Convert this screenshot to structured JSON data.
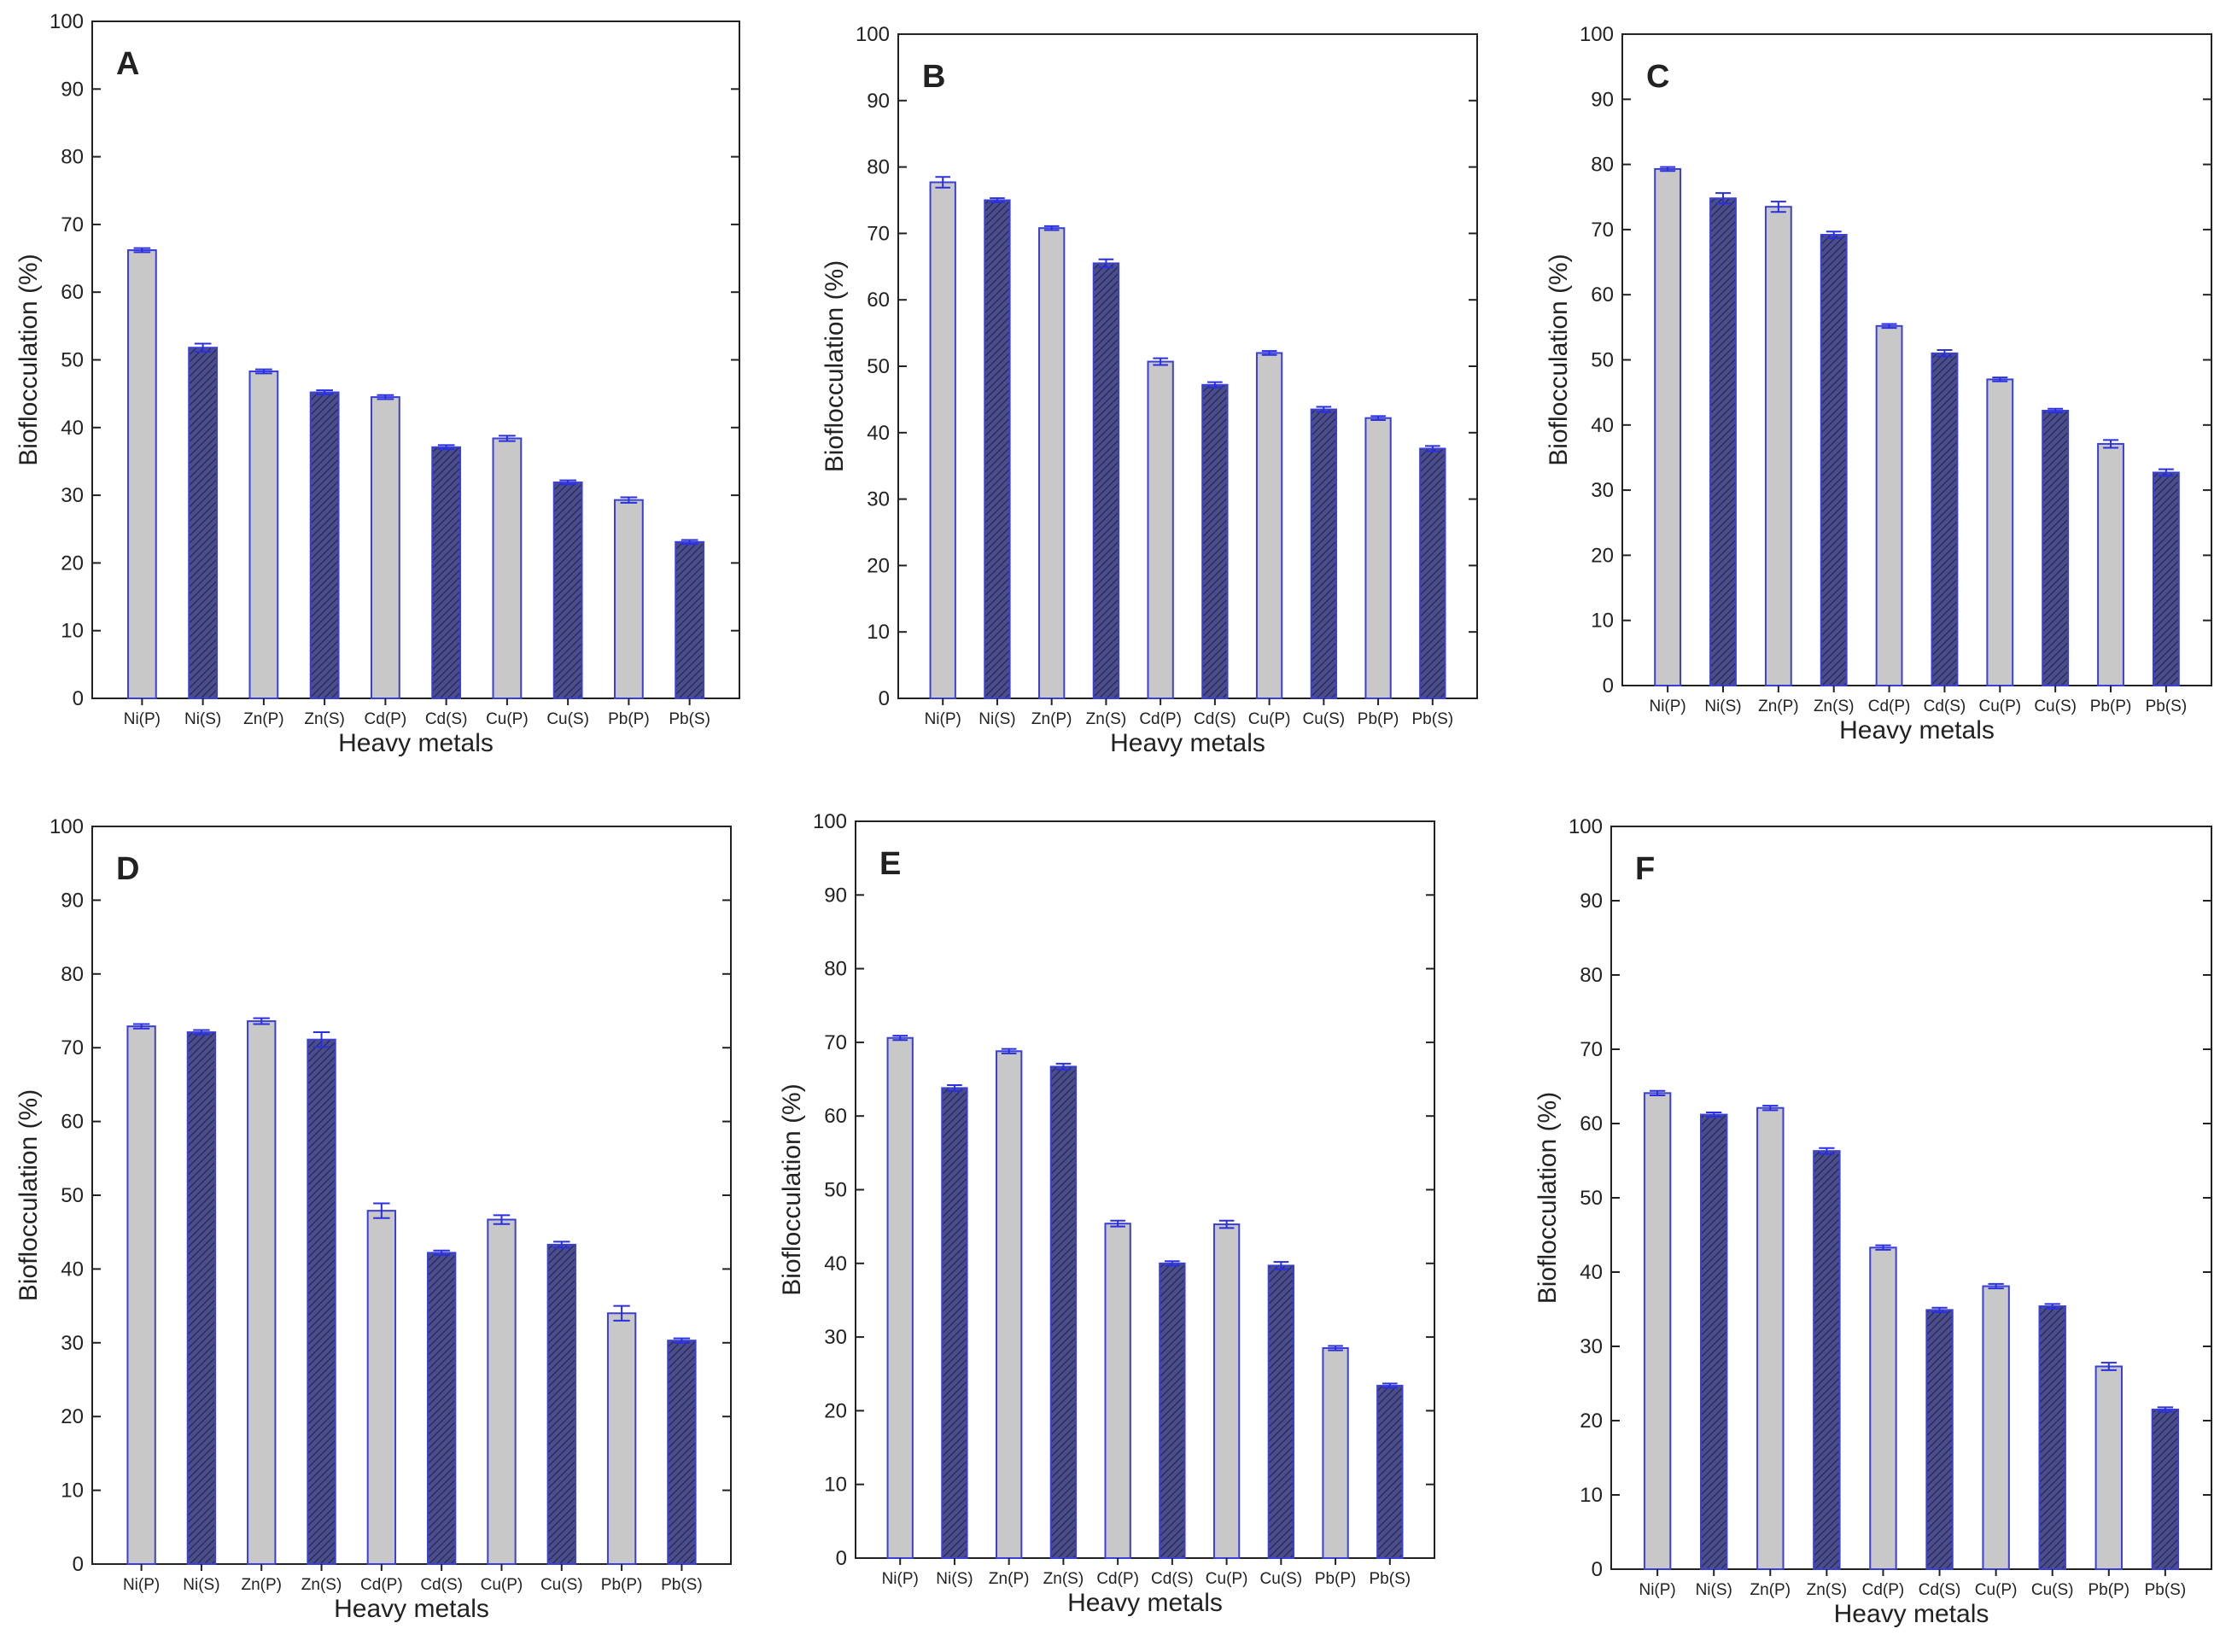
{
  "figure": {
    "colors": {
      "bar_outline": "#3a3fd8",
      "p_fill": "#c8c8c8",
      "s_fill": "#4b4e8a",
      "s_hatch": "#2b2d5e",
      "axis": "#222222",
      "error_bar": "#2a2fe0"
    },
    "chart_data": [
      {
        "type": "bar",
        "panel": "A",
        "title": "",
        "xlabel": "Heavy metals",
        "ylabel": "Bioflocculation (%)",
        "ylim": [
          0,
          100
        ],
        "yticks": [
          0,
          10,
          20,
          30,
          40,
          50,
          60,
          70,
          80,
          90,
          100
        ],
        "categories": [
          "Ni(P)",
          "Ni(S)",
          "Zn(P)",
          "Zn(S)",
          "Cd(P)",
          "Cd(S)",
          "Cu(P)",
          "Cu(S)",
          "Pb(P)",
          "Pb(S)"
        ],
        "values": [
          66.2,
          51.8,
          48.3,
          45.2,
          44.5,
          37.1,
          38.4,
          31.9,
          29.3,
          23.1
        ],
        "errors": [
          0.3,
          0.6,
          0.3,
          0.3,
          0.3,
          0.3,
          0.4,
          0.3,
          0.4,
          0.3
        ]
      },
      {
        "type": "bar",
        "panel": "B",
        "title": "",
        "xlabel": "Heavy metals",
        "ylabel": "Bioflocculation (%)",
        "ylim": [
          0,
          100
        ],
        "yticks": [
          0,
          10,
          20,
          30,
          40,
          50,
          60,
          70,
          80,
          90,
          100
        ],
        "categories": [
          "Ni(P)",
          "Ni(S)",
          "Zn(P)",
          "Zn(S)",
          "Cd(P)",
          "Cd(S)",
          "Cu(P)",
          "Cu(S)",
          "Pb(P)",
          "Pb(S)"
        ],
        "values": [
          77.7,
          75.0,
          70.8,
          65.5,
          50.7,
          47.2,
          52.0,
          43.5,
          42.2,
          37.6
        ],
        "errors": [
          0.8,
          0.3,
          0.3,
          0.6,
          0.5,
          0.4,
          0.3,
          0.4,
          0.3,
          0.4
        ]
      },
      {
        "type": "bar",
        "panel": "C",
        "title": "",
        "xlabel": "Heavy metals",
        "ylabel": "Bioflocculation (%)",
        "ylim": [
          0,
          100
        ],
        "yticks": [
          0,
          10,
          20,
          30,
          40,
          50,
          60,
          70,
          80,
          90,
          100
        ],
        "categories": [
          "Ni(P)",
          "Ni(S)",
          "Zn(P)",
          "Zn(S)",
          "Cd(P)",
          "Cd(S)",
          "Cu(P)",
          "Cu(S)",
          "Pb(P)",
          "Pb(S)"
        ],
        "values": [
          79.3,
          74.8,
          73.5,
          69.2,
          55.2,
          51.0,
          47.0,
          42.2,
          37.1,
          32.7
        ],
        "errors": [
          0.3,
          0.8,
          0.8,
          0.5,
          0.3,
          0.5,
          0.3,
          0.3,
          0.6,
          0.5
        ]
      },
      {
        "type": "bar",
        "panel": "D",
        "title": "",
        "xlabel": "Heavy metals",
        "ylabel": "Bioflocculation (%)",
        "ylim": [
          0,
          100
        ],
        "yticks": [
          0,
          10,
          20,
          30,
          40,
          50,
          60,
          70,
          80,
          90,
          100
        ],
        "categories": [
          "Ni(P)",
          "Ni(S)",
          "Zn(P)",
          "Zn(S)",
          "Cd(P)",
          "Cd(S)",
          "Cu(P)",
          "Cu(S)",
          "Pb(P)",
          "Pb(S)"
        ],
        "values": [
          72.9,
          72.1,
          73.6,
          71.1,
          47.9,
          42.2,
          46.7,
          43.3,
          34.0,
          30.3
        ],
        "errors": [
          0.3,
          0.3,
          0.4,
          1.0,
          1.0,
          0.3,
          0.6,
          0.4,
          1.0,
          0.3
        ]
      },
      {
        "type": "bar",
        "panel": "E",
        "title": "",
        "xlabel": "Heavy metals",
        "ylabel": "Bioflocculation (%)",
        "ylim": [
          0,
          100
        ],
        "yticks": [
          0,
          10,
          20,
          30,
          40,
          50,
          60,
          70,
          80,
          90,
          100
        ],
        "categories": [
          "Ni(P)",
          "Ni(S)",
          "Zn(P)",
          "Zn(S)",
          "Cd(P)",
          "Cd(S)",
          "Cu(P)",
          "Cu(S)",
          "Pb(P)",
          "Pb(S)"
        ],
        "values": [
          70.6,
          63.8,
          68.8,
          66.7,
          45.4,
          40.0,
          45.3,
          39.7,
          28.5,
          23.4
        ],
        "errors": [
          0.3,
          0.4,
          0.3,
          0.4,
          0.4,
          0.3,
          0.5,
          0.5,
          0.3,
          0.3
        ]
      },
      {
        "type": "bar",
        "panel": "F",
        "title": "",
        "xlabel": "Heavy metals",
        "ylabel": "Bioflocculation (%)",
        "ylim": [
          0,
          100
        ],
        "yticks": [
          0,
          10,
          20,
          30,
          40,
          50,
          60,
          70,
          80,
          90,
          100
        ],
        "categories": [
          "Ni(P)",
          "Ni(S)",
          "Zn(P)",
          "Zn(S)",
          "Cd(P)",
          "Cd(S)",
          "Cu(P)",
          "Cu(S)",
          "Pb(P)",
          "Pb(S)"
        ],
        "values": [
          64.1,
          61.2,
          62.1,
          56.3,
          43.3,
          34.9,
          38.1,
          35.4,
          27.3,
          21.5
        ],
        "errors": [
          0.3,
          0.3,
          0.3,
          0.4,
          0.3,
          0.3,
          0.3,
          0.3,
          0.5,
          0.3
        ]
      }
    ]
  }
}
